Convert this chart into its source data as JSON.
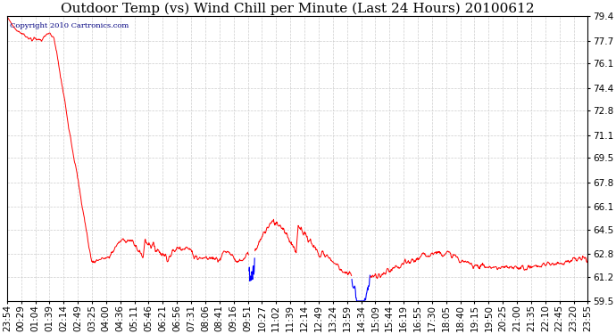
{
  "title": "Outdoor Temp (vs) Wind Chill per Minute (Last 24 Hours) 20100612",
  "copyright_text": "Copyright 2010 Cartronics.com",
  "background_color": "#ffffff",
  "plot_bg_color": "#ffffff",
  "grid_color": "#c8c8c8",
  "line_color_red": "#ff0000",
  "line_color_blue": "#0000ff",
  "ylim": [
    59.5,
    79.4
  ],
  "yticks": [
    59.5,
    61.2,
    62.8,
    64.5,
    66.1,
    67.8,
    69.5,
    71.1,
    72.8,
    74.4,
    76.1,
    77.7,
    79.4
  ],
  "tick_fontsize": 7.5,
  "title_fontsize": 11,
  "n_points": 1441,
  "x_tick_labels": [
    "23:54",
    "00:29",
    "01:04",
    "01:39",
    "02:14",
    "02:49",
    "03:25",
    "04:00",
    "04:36",
    "05:11",
    "05:46",
    "06:21",
    "06:56",
    "07:31",
    "08:06",
    "08:41",
    "09:16",
    "09:51",
    "10:27",
    "11:02",
    "11:39",
    "12:14",
    "12:49",
    "13:24",
    "13:59",
    "14:34",
    "15:09",
    "15:44",
    "16:19",
    "16:55",
    "17:30",
    "18:05",
    "18:40",
    "19:15",
    "19:50",
    "20:25",
    "21:00",
    "21:35",
    "22:10",
    "22:45",
    "23:20",
    "23:55"
  ]
}
